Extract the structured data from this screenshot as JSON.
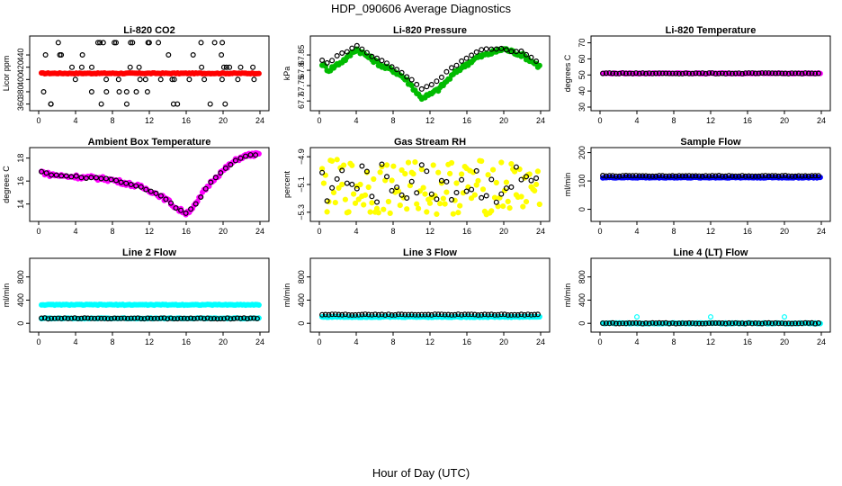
{
  "title": "HDP_090606  Average Diagnostics",
  "xlabel": "Hour of Day (UTC)",
  "chart_data": [
    {
      "type": "scatter",
      "title": "Li-820 CO2",
      "ylabel": "Licor ppm",
      "xlim": [
        0,
        24
      ],
      "ylim": [
        355,
        465
      ],
      "xticks": [
        0,
        4,
        8,
        12,
        16,
        20,
        24
      ],
      "yticks": [
        360,
        380,
        400,
        420,
        440
      ],
      "series": [
        {
          "name": "co2-mean",
          "color": "#ff0000",
          "filled": true,
          "pattern": "flat",
          "y": [
            410
          ]
        },
        {
          "name": "co2-samples",
          "color": "#000000",
          "filled": false,
          "pattern": "scatter",
          "y": [
            360,
            380,
            400,
            420,
            440,
            460
          ]
        }
      ]
    },
    {
      "type": "scatter",
      "title": "Li-820 Pressure",
      "ylabel": "kPa",
      "xlim": [
        0,
        24
      ],
      "ylim": [
        67.68,
        67.9
      ],
      "xticks": [
        0,
        4,
        8,
        12,
        16,
        20,
        24
      ],
      "yticks": [
        67.7,
        67.75,
        67.8,
        67.85
      ],
      "series": [
        {
          "name": "pressure-mean",
          "color": "#00bb00",
          "filled": true,
          "pattern": "curve",
          "x": [
            0,
            1,
            2,
            3,
            4,
            5,
            6,
            7,
            8,
            9,
            10,
            11,
            12,
            13,
            14,
            15,
            16,
            17,
            18,
            19,
            20,
            21,
            22,
            23,
            24
          ],
          "y": [
            67.83,
            67.8,
            67.82,
            67.84,
            67.87,
            67.85,
            67.83,
            67.81,
            67.8,
            67.78,
            67.75,
            67.71,
            67.72,
            67.74,
            67.77,
            67.8,
            67.82,
            67.84,
            67.85,
            67.86,
            67.87,
            67.86,
            67.85,
            67.83,
            67.81
          ]
        },
        {
          "name": "pressure-samples",
          "color": "#000000",
          "filled": false,
          "pattern": "curve",
          "x": [
            0,
            1,
            2,
            3,
            4,
            5,
            6,
            7,
            8,
            9,
            10,
            11,
            12,
            13,
            14,
            15,
            16,
            17,
            18,
            19,
            20,
            21,
            22,
            23,
            24
          ],
          "y": [
            67.84,
            67.82,
            67.85,
            67.86,
            67.88,
            67.86,
            67.84,
            67.83,
            67.81,
            67.79,
            67.77,
            67.74,
            67.75,
            67.77,
            67.8,
            67.82,
            67.84,
            67.86,
            67.87,
            67.87,
            67.87,
            67.86,
            67.86,
            67.84,
            67.82
          ]
        }
      ]
    },
    {
      "type": "scatter",
      "title": "Li-820 Temperature",
      "ylabel": "degrees C",
      "xlim": [
        0,
        24
      ],
      "ylim": [
        30,
        72
      ],
      "xticks": [
        0,
        4,
        8,
        12,
        16,
        20,
        24
      ],
      "yticks": [
        30,
        40,
        50,
        60,
        70
      ],
      "series": [
        {
          "name": "temp-mean",
          "color": "#ff00ff",
          "filled": true,
          "pattern": "flat",
          "y": [
            51
          ]
        },
        {
          "name": "temp-samples",
          "color": "#000000",
          "filled": false,
          "pattern": "flat",
          "y": [
            51
          ]
        }
      ]
    },
    {
      "type": "scatter",
      "title": "Ambient Box Temperature",
      "ylabel": "degrees C",
      "xlim": [
        0,
        24
      ],
      "ylim": [
        12.8,
        18.6
      ],
      "xticks": [
        0,
        4,
        8,
        12,
        16,
        20,
        24
      ],
      "yticks": [
        14,
        16,
        18
      ],
      "series": [
        {
          "name": "box-temp-mean",
          "color": "#ff00ff",
          "filled": true,
          "pattern": "curve",
          "x": [
            0,
            1,
            2,
            3,
            4,
            5,
            6,
            7,
            8,
            9,
            10,
            11,
            12,
            13,
            14,
            15,
            16,
            17,
            18,
            19,
            20,
            21,
            22,
            23,
            24
          ],
          "y": [
            16.9,
            16.6,
            16.5,
            16.4,
            16.4,
            16.3,
            16.3,
            16.2,
            16.1,
            15.9,
            15.7,
            15.5,
            15.2,
            14.8,
            14.3,
            13.6,
            13.2,
            13.9,
            15.2,
            16.2,
            16.9,
            17.6,
            18.1,
            18.3,
            18.3
          ]
        },
        {
          "name": "box-temp-samples",
          "color": "#000000",
          "filled": false,
          "pattern": "curve",
          "x": [
            0,
            1,
            2,
            3,
            4,
            5,
            6,
            7,
            8,
            9,
            10,
            11,
            12,
            13,
            14,
            15,
            16,
            17,
            18,
            19,
            20,
            21,
            22,
            23,
            24
          ],
          "y": [
            16.9,
            16.6,
            16.5,
            16.4,
            16.4,
            16.3,
            16.3,
            16.2,
            16.1,
            15.9,
            15.7,
            15.5,
            15.2,
            14.8,
            14.3,
            13.6,
            13.2,
            13.9,
            15.2,
            16.2,
            16.9,
            17.6,
            18.1,
            18.3,
            18.3
          ]
        }
      ]
    },
    {
      "type": "scatter",
      "title": "Gas Stream RH",
      "ylabel": "percent",
      "xlim": [
        0,
        24
      ],
      "ylim": [
        -5.34,
        -4.86
      ],
      "xticks": [
        0,
        4,
        8,
        12,
        16,
        20,
        24
      ],
      "yticks": [
        -5.3,
        -5.1,
        -4.9
      ],
      "series": [
        {
          "name": "rh-mean",
          "color": "#ffff00",
          "filled": true,
          "pattern": "noise",
          "center": -5.12,
          "spread": 0.2
        },
        {
          "name": "rh-samples",
          "color": "#000000",
          "filled": false,
          "pattern": "noise",
          "center": -5.1,
          "spread": 0.15
        }
      ]
    },
    {
      "type": "scatter",
      "title": "Sample Flow",
      "ylabel": "ml/min",
      "xlim": [
        0,
        24
      ],
      "ylim": [
        -30,
        205
      ],
      "xticks": [
        0,
        4,
        8,
        12,
        16,
        20,
        24
      ],
      "yticks": [
        0,
        100,
        200
      ],
      "series": [
        {
          "name": "sample-flow-mean",
          "color": "#0000ff",
          "filled": true,
          "pattern": "flat",
          "y": [
            112
          ]
        },
        {
          "name": "sample-flow-samples",
          "color": "#000000",
          "filled": false,
          "pattern": "flat",
          "y": [
            118
          ]
        }
      ]
    },
    {
      "type": "scatter",
      "title": "Line 2 Flow",
      "ylabel": "ml/min",
      "xlim": [
        0,
        24
      ],
      "ylim": [
        -90,
        1060
      ],
      "xticks": [
        0,
        4,
        8,
        12,
        16,
        20,
        24
      ],
      "yticks": [
        0,
        400,
        800
      ],
      "series": [
        {
          "name": "line2-flow-mean",
          "color": "#00ffff",
          "filled": true,
          "pattern": "flat",
          "y": [
            320
          ]
        },
        {
          "name": "line2-flow-low",
          "color": "#00ffff",
          "filled": true,
          "pattern": "flat",
          "y": [
            85
          ]
        },
        {
          "name": "line2-flow-samples",
          "color": "#000000",
          "filled": false,
          "pattern": "flat",
          "y": [
            85
          ]
        }
      ]
    },
    {
      "type": "scatter",
      "title": "Line 3 Flow",
      "ylabel": "ml/min",
      "xlim": [
        0,
        24
      ],
      "ylim": [
        -90,
        1060
      ],
      "xticks": [
        0,
        4,
        8,
        12,
        16,
        20,
        24
      ],
      "yticks": [
        0,
        400,
        800
      ],
      "series": [
        {
          "name": "line3-flow-mean",
          "color": "#00ffff",
          "filled": true,
          "pattern": "flat",
          "y": [
            110
          ]
        },
        {
          "name": "line3-flow-samples",
          "color": "#000000",
          "filled": false,
          "pattern": "flat",
          "y": [
            150
          ]
        }
      ]
    },
    {
      "type": "scatter",
      "title": "Line 4 (LT) Flow",
      "ylabel": "ml/min",
      "xlim": [
        0,
        24
      ],
      "ylim": [
        -90,
        1060
      ],
      "xticks": [
        0,
        4,
        8,
        12,
        16,
        20,
        24
      ],
      "yticks": [
        0,
        400,
        800
      ],
      "series": [
        {
          "name": "line4-flow-mean",
          "color": "#00ffff",
          "filled": true,
          "pattern": "flat",
          "y": [
            0
          ]
        },
        {
          "name": "line4-flow-spikes",
          "color": "#00ffff",
          "filled": false,
          "pattern": "points",
          "x": [
            4,
            12,
            20
          ],
          "y": [
            110,
            110,
            110
          ]
        },
        {
          "name": "line4-flow-samples",
          "color": "#000000",
          "filled": false,
          "pattern": "flat",
          "y": [
            0
          ]
        }
      ]
    }
  ]
}
